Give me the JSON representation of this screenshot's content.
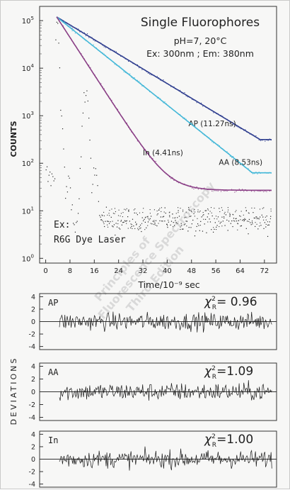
{
  "chart_data": [
    {
      "type": "scatter",
      "title": "Single Fluorophores",
      "conditions": [
        "pH=7, 20°C",
        "Ex: 300nm ; Em: 380nm"
      ],
      "ylabel": "COUNTS",
      "xlabel": "Time/10⁻⁹ sec",
      "yscale": "log",
      "xlim": [
        -2,
        76
      ],
      "ylim_log10": [
        -0.1,
        5.3
      ],
      "x_ticks": [
        0,
        8,
        16,
        24,
        32,
        40,
        48,
        56,
        64,
        72
      ],
      "y_ticks": [
        {
          "v": 0,
          "base": "10",
          "exp": "0"
        },
        {
          "v": 1,
          "base": "10",
          "exp": "1"
        },
        {
          "v": 2,
          "base": "10",
          "exp": "2"
        },
        {
          "v": 3,
          "base": "10",
          "exp": "3"
        },
        {
          "v": 4,
          "base": "10",
          "exp": "4"
        },
        {
          "v": 5,
          "base": "10",
          "exp": "5"
        }
      ],
      "excitation_note": [
        "Ex:",
        "R6G Dye Laser"
      ],
      "peak": {
        "t": 3.6,
        "counts": 120000
      },
      "series": [
        {
          "name": "AP",
          "label": "AP (11.27ns)",
          "lifetime_ns": 11.27,
          "color": "#2f3e8f",
          "end_counts": 350,
          "label_at": [
            47,
            600
          ]
        },
        {
          "name": "AA",
          "label": "AA (8.53ns)",
          "lifetime_ns": 8.53,
          "color": "#45b8d8",
          "end_counts": 70,
          "label_at": [
            57,
            92
          ]
        },
        {
          "name": "In",
          "label": "In (4.41ns)",
          "lifetime_ns": 4.41,
          "color": "#8a3f86",
          "end_counts": 27,
          "label_at": [
            32,
            148
          ]
        }
      ],
      "lamp_peaks": [
        {
          "t": 3.6,
          "counts": 100000
        },
        {
          "t": 5.0,
          "counts": 700
        },
        {
          "t": 7.5,
          "counts": 40
        },
        {
          "t": 13.0,
          "counts": 3000
        },
        {
          "t": 16.2,
          "counts": 100
        }
      ]
    },
    {
      "type": "line",
      "ylabel": "DEVIATIONS",
      "panels": [
        {
          "name": "AP",
          "chi2": "= 0.96"
        },
        {
          "name": "AA",
          "chi2": "=1.09"
        },
        {
          "name": "In",
          "chi2": "=1.00"
        }
      ],
      "y_ticks": [
        "4",
        "2",
        "0",
        "-2",
        "-4"
      ],
      "ylim": [
        -4.5,
        4.5
      ],
      "chi_symbol": "χ",
      "chi_sub": "R",
      "chi_sup": "2"
    }
  ]
}
